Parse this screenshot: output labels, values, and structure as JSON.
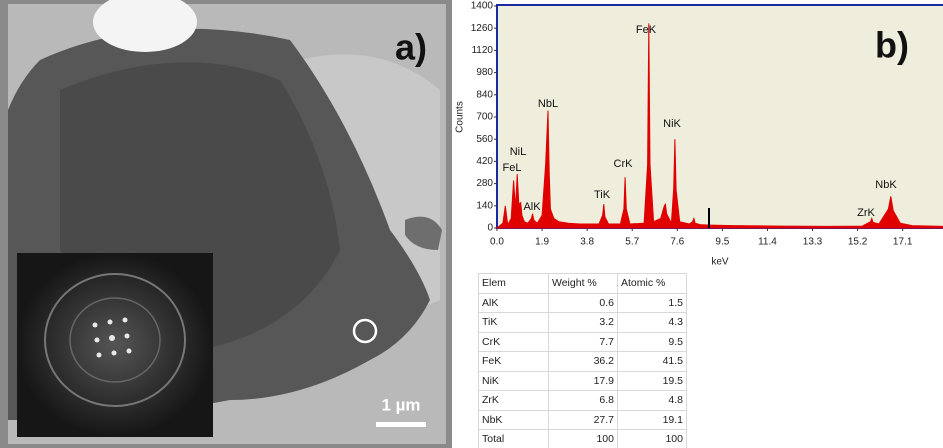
{
  "panel_a": {
    "label": "a)",
    "scale_bar": "1 µm"
  },
  "chart_data": {
    "type": "area",
    "label": "b)",
    "y_label": "Counts",
    "x_label": "keV",
    "color": "#e00000",
    "x": [
      0,
      0.25,
      0.35,
      0.45,
      0.6,
      0.7,
      0.78,
      0.85,
      0.92,
      1.0,
      1.05,
      1.15,
      1.3,
      1.45,
      1.5,
      1.55,
      1.7,
      1.9,
      2.05,
      2.15,
      2.2,
      2.25,
      2.4,
      2.6,
      3,
      3.5,
      4.3,
      4.45,
      4.5,
      4.55,
      4.7,
      5.2,
      5.35,
      5.4,
      5.45,
      5.6,
      6.2,
      6.35,
      6.4,
      6.45,
      6.6,
      6.9,
      7.05,
      7.1,
      7.15,
      7.35,
      7.45,
      7.5,
      7.55,
      7.7,
      8.1,
      8.25,
      8.3,
      8.35,
      8.6,
      9,
      10,
      12,
      14,
      15.4,
      15.75,
      15.8,
      15.85,
      16.1,
      16.5,
      16.6,
      16.7,
      17,
      17.5,
      18.8
    ],
    "values": [
      0,
      30,
      140,
      20,
      60,
      300,
      120,
      340,
      150,
      160,
      80,
      40,
      30,
      60,
      90,
      50,
      30,
      80,
      400,
      740,
      350,
      120,
      60,
      40,
      30,
      25,
      25,
      80,
      150,
      70,
      25,
      25,
      120,
      320,
      120,
      25,
      30,
      400,
      1290,
      400,
      40,
      60,
      140,
      150,
      90,
      30,
      250,
      560,
      240,
      40,
      25,
      40,
      60,
      30,
      20,
      18,
      15,
      12,
      10,
      12,
      40,
      60,
      35,
      25,
      120,
      200,
      110,
      30,
      15,
      10
    ],
    "annotations": [
      "FeK",
      "NbL",
      "NiL",
      "FeL",
      "AlK",
      "TiK",
      "CrK",
      "NiK",
      "ZrK",
      "NbK"
    ],
    "xlim": [
      0,
      18.8
    ],
    "ylim": [
      0,
      1400
    ],
    "xticks": [
      {
        "value": 0,
        "label": "0.0"
      },
      1.9,
      3.8,
      5.7,
      7.6,
      9.5,
      11.4,
      13.3,
      15.2,
      17.1
    ],
    "yticks": [
      0,
      140,
      280,
      420,
      560,
      700,
      840,
      980,
      1120,
      1260,
      1400
    ]
  },
  "table": {
    "header": [
      "Elem",
      "Weight %",
      "Atomic %"
    ],
    "rows": [
      [
        "AlK",
        0.6,
        1.5
      ],
      [
        "TiK",
        3.2,
        4.3
      ],
      [
        "CrK",
        7.7,
        9.5
      ],
      [
        "FeK",
        36.2,
        41.5
      ],
      [
        "NiK",
        17.9,
        19.5
      ],
      [
        "ZrK",
        6.8,
        4.8
      ],
      [
        "NbK",
        27.7,
        19.1
      ],
      [
        "Total",
        100,
        100
      ]
    ]
  }
}
